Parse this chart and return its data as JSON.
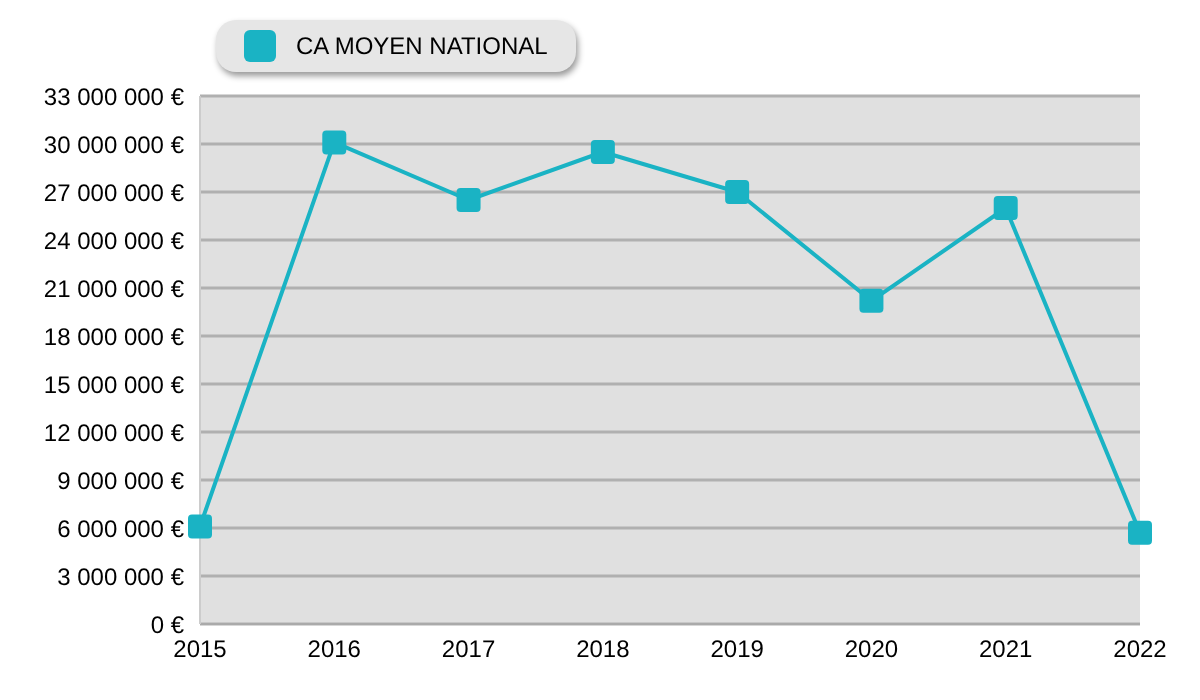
{
  "chart_data": {
    "type": "line",
    "categories": [
      "2015",
      "2016",
      "2017",
      "2018",
      "2019",
      "2020",
      "2021",
      "2022"
    ],
    "series": [
      {
        "name": "CA MOYEN NATIONAL",
        "color": "#1ab3c4",
        "values": [
          6100000,
          30100000,
          26500000,
          29500000,
          27000000,
          20200000,
          26000000,
          5700000
        ]
      }
    ],
    "ylim": [
      0,
      33000000
    ],
    "yticks": [
      {
        "value": 0,
        "label": "0 €"
      },
      {
        "value": 3000000,
        "label": "3 000 000 €"
      },
      {
        "value": 6000000,
        "label": "6 000 000 €"
      },
      {
        "value": 9000000,
        "label": "9 000 000 €"
      },
      {
        "value": 12000000,
        "label": "12 000 000 €"
      },
      {
        "value": 15000000,
        "label": "15 000 000 €"
      },
      {
        "value": 18000000,
        "label": "18 000 000 €"
      },
      {
        "value": 21000000,
        "label": "21 000 000 €"
      },
      {
        "value": 24000000,
        "label": "24 000 000 €"
      },
      {
        "value": 27000000,
        "label": "27 000 000 €"
      },
      {
        "value": 30000000,
        "label": "30 000 000 €"
      },
      {
        "value": 33000000,
        "label": "33 000 000 €"
      }
    ],
    "grid": "y",
    "legend": "top left",
    "marker": "square",
    "line_style": "solid"
  }
}
